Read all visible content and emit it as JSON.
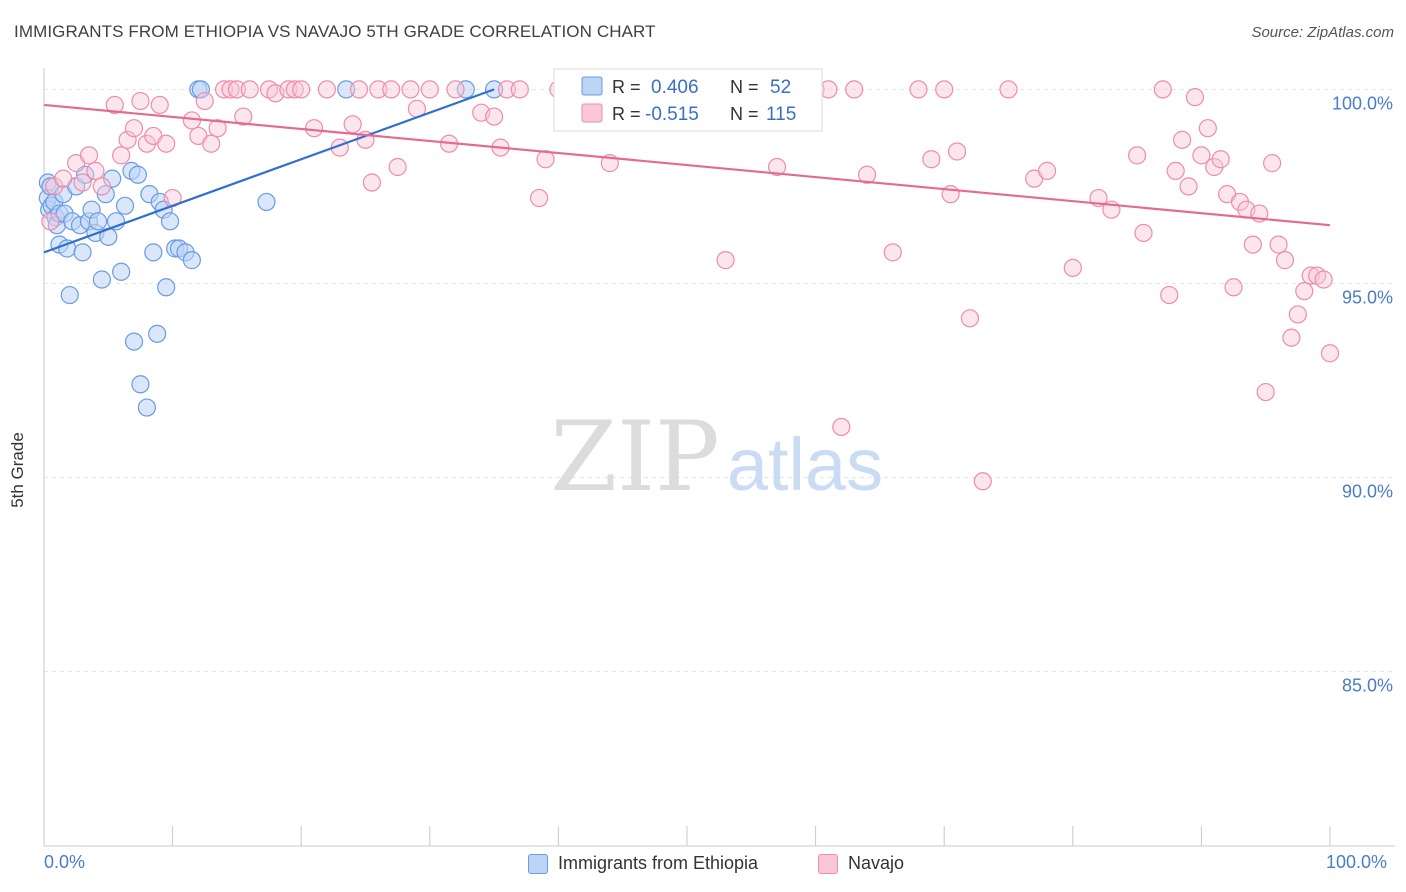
{
  "header": {
    "title": "IMMIGRANTS FROM ETHIOPIA VS NAVAJO 5TH GRADE CORRELATION CHART",
    "source": "Source: ZipAtlas.com"
  },
  "watermark": {
    "zip": "ZIP",
    "atlas": "atlas"
  },
  "stats_legend": [
    {
      "r_label": "R =",
      "r_value": "0.406",
      "n_label": "N =",
      "n_value": "52",
      "color": "#6a9be3"
    },
    {
      "r_label": "R =",
      "r_value": "-0.515",
      "n_label": "N =",
      "n_value": "115",
      "color": "#f08bac"
    }
  ],
  "chart_data": {
    "type": "scatter",
    "title": "IMMIGRANTS FROM ETHIOPIA VS NAVAJO 5TH GRADE CORRELATION CHART",
    "xlabel": "",
    "ylabel": "5th Grade",
    "xlim": [
      0,
      100
    ],
    "ylim": [
      80.5,
      100.5
    ],
    "x_tick_labels": [
      "0.0%",
      "100.0%"
    ],
    "y_ticks": [
      85,
      90,
      95,
      100
    ],
    "y_tick_labels": [
      "85.0%",
      "90.0%",
      "95.0%",
      "100.0%"
    ],
    "grid": true,
    "legend_position": "bottom",
    "series": [
      {
        "name": "Immigrants from Ethiopia",
        "color": "#6a9be3",
        "trend": {
          "x": [
            0.0,
            35.0
          ],
          "y": [
            95.8,
            100.0
          ]
        },
        "points": [
          [
            0.3,
            97.6
          ],
          [
            0.3,
            97.2
          ],
          [
            0.4,
            96.9
          ],
          [
            0.5,
            97.5
          ],
          [
            0.6,
            97.0
          ],
          [
            0.8,
            97.1
          ],
          [
            0.9,
            96.7
          ],
          [
            1.0,
            96.5
          ],
          [
            1.2,
            96.0
          ],
          [
            1.2,
            96.8
          ],
          [
            1.5,
            97.3
          ],
          [
            1.6,
            96.8
          ],
          [
            1.8,
            95.9
          ],
          [
            2.0,
            94.7
          ],
          [
            2.2,
            96.6
          ],
          [
            2.5,
            97.5
          ],
          [
            2.8,
            96.5
          ],
          [
            3.0,
            95.8
          ],
          [
            3.2,
            97.8
          ],
          [
            3.5,
            96.6
          ],
          [
            3.7,
            96.9
          ],
          [
            4.0,
            96.3
          ],
          [
            4.2,
            96.6
          ],
          [
            4.5,
            95.1
          ],
          [
            4.8,
            97.3
          ],
          [
            5.0,
            96.2
          ],
          [
            5.3,
            97.7
          ],
          [
            5.6,
            96.6
          ],
          [
            6.0,
            95.3
          ],
          [
            6.3,
            97.0
          ],
          [
            6.8,
            97.9
          ],
          [
            7.0,
            93.5
          ],
          [
            7.3,
            97.8
          ],
          [
            7.5,
            92.4
          ],
          [
            8.0,
            91.8
          ],
          [
            8.2,
            97.3
          ],
          [
            8.5,
            95.8
          ],
          [
            8.8,
            93.7
          ],
          [
            9.0,
            97.1
          ],
          [
            9.3,
            96.9
          ],
          [
            9.5,
            94.9
          ],
          [
            9.8,
            96.6
          ],
          [
            10.2,
            95.9
          ],
          [
            10.5,
            95.9
          ],
          [
            11.0,
            95.8
          ],
          [
            11.5,
            95.6
          ],
          [
            12.0,
            100.0
          ],
          [
            12.2,
            100.0
          ],
          [
            17.3,
            97.1
          ],
          [
            23.5,
            100.0
          ],
          [
            32.8,
            100.0
          ],
          [
            35.0,
            100.0
          ]
        ]
      },
      {
        "name": "Navajo",
        "color": "#f08bac",
        "trend": {
          "x": [
            0.0,
            100.0
          ],
          "y": [
            99.6,
            96.5
          ]
        },
        "points": [
          [
            0.5,
            96.6
          ],
          [
            0.8,
            97.5
          ],
          [
            1.5,
            97.7
          ],
          [
            2.5,
            98.1
          ],
          [
            3.0,
            97.6
          ],
          [
            3.5,
            98.3
          ],
          [
            4.0,
            97.9
          ],
          [
            4.5,
            97.5
          ],
          [
            5.5,
            99.6
          ],
          [
            6.0,
            98.3
          ],
          [
            6.5,
            98.7
          ],
          [
            7.0,
            99.0
          ],
          [
            7.5,
            99.7
          ],
          [
            8.0,
            98.6
          ],
          [
            8.5,
            98.8
          ],
          [
            9.0,
            99.6
          ],
          [
            9.5,
            98.6
          ],
          [
            10.0,
            97.2
          ],
          [
            11.5,
            99.2
          ],
          [
            12.0,
            98.8
          ],
          [
            12.5,
            99.7
          ],
          [
            13.0,
            98.6
          ],
          [
            13.5,
            99.0
          ],
          [
            14.0,
            100.0
          ],
          [
            14.5,
            100.0
          ],
          [
            15.0,
            100.0
          ],
          [
            15.5,
            99.3
          ],
          [
            16.0,
            100.0
          ],
          [
            17.5,
            100.0
          ],
          [
            18.0,
            99.9
          ],
          [
            19.0,
            100.0
          ],
          [
            19.5,
            100.0
          ],
          [
            20.0,
            100.0
          ],
          [
            21.0,
            99.0
          ],
          [
            22.0,
            100.0
          ],
          [
            23.0,
            98.5
          ],
          [
            24.0,
            99.1
          ],
          [
            24.5,
            100.0
          ],
          [
            25.0,
            98.7
          ],
          [
            25.5,
            97.6
          ],
          [
            26.0,
            100.0
          ],
          [
            27.0,
            100.0
          ],
          [
            27.5,
            98.0
          ],
          [
            28.5,
            100.0
          ],
          [
            29.0,
            99.5
          ],
          [
            30.0,
            100.0
          ],
          [
            31.5,
            98.6
          ],
          [
            32.0,
            100.0
          ],
          [
            34.0,
            99.4
          ],
          [
            35.0,
            99.3
          ],
          [
            35.5,
            98.5
          ],
          [
            36.0,
            100.0
          ],
          [
            37.0,
            100.0
          ],
          [
            38.5,
            97.2
          ],
          [
            39.0,
            98.2
          ],
          [
            40.0,
            100.0
          ],
          [
            41.0,
            100.0
          ],
          [
            42.0,
            100.0
          ],
          [
            44.0,
            98.1
          ],
          [
            45.0,
            100.0
          ],
          [
            46.0,
            99.5
          ],
          [
            47.0,
            100.0
          ],
          [
            49.0,
            99.4
          ],
          [
            50.0,
            100.0
          ],
          [
            53.0,
            95.6
          ],
          [
            55.0,
            100.0
          ],
          [
            57.0,
            98.0
          ],
          [
            60.0,
            100.0
          ],
          [
            61.0,
            100.0
          ],
          [
            62.0,
            91.3
          ],
          [
            63.0,
            100.0
          ],
          [
            64.0,
            97.8
          ],
          [
            66.0,
            95.8
          ],
          [
            68.0,
            100.0
          ],
          [
            69.0,
            98.2
          ],
          [
            70.0,
            100.0
          ],
          [
            70.5,
            97.3
          ],
          [
            71.0,
            98.4
          ],
          [
            72.0,
            94.1
          ],
          [
            73.0,
            89.9
          ],
          [
            75.0,
            100.0
          ],
          [
            77.0,
            97.7
          ],
          [
            78.0,
            97.9
          ],
          [
            80.0,
            95.4
          ],
          [
            82.0,
            97.2
          ],
          [
            83.0,
            96.9
          ],
          [
            85.0,
            98.3
          ],
          [
            85.5,
            96.3
          ],
          [
            87.0,
            100.0
          ],
          [
            87.5,
            94.7
          ],
          [
            88.0,
            97.9
          ],
          [
            88.5,
            98.7
          ],
          [
            89.0,
            97.5
          ],
          [
            89.5,
            99.8
          ],
          [
            90.0,
            98.3
          ],
          [
            90.5,
            99.0
          ],
          [
            91.0,
            98.0
          ],
          [
            91.5,
            98.2
          ],
          [
            92.0,
            97.3
          ],
          [
            92.5,
            94.9
          ],
          [
            93.0,
            97.1
          ],
          [
            93.5,
            96.9
          ],
          [
            94.0,
            96.0
          ],
          [
            94.5,
            96.8
          ],
          [
            95.0,
            92.2
          ],
          [
            95.5,
            98.1
          ],
          [
            96.0,
            96.0
          ],
          [
            96.5,
            95.6
          ],
          [
            97.0,
            93.6
          ],
          [
            97.5,
            94.2
          ],
          [
            98.0,
            94.8
          ],
          [
            98.5,
            95.2
          ],
          [
            99.0,
            95.2
          ],
          [
            99.5,
            95.1
          ],
          [
            100.0,
            93.2
          ]
        ]
      }
    ]
  }
}
